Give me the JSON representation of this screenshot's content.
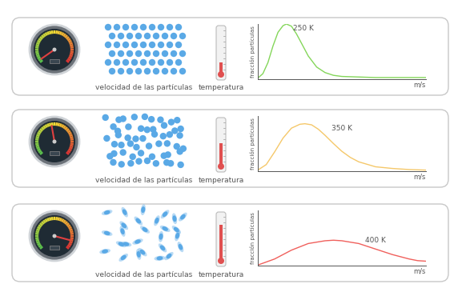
{
  "panels": [
    {
      "gauge_label": "velocidad de las partículas",
      "thermometer_label": "temperatura"
    },
    {
      "gauge_label": "velocidad de las partículas",
      "thermometer_label": "temperatura"
    },
    {
      "gauge_label": "velocidad de las partículas",
      "thermometer_label": "temperatura"
    }
  ],
  "chart_data": [
    {
      "type": "line",
      "x_label": "m/s",
      "y_label": "fracción partículas",
      "xlim": [
        0,
        100
      ],
      "ylim": [
        0,
        100
      ],
      "xticks": [],
      "yticks": [],
      "grid": false,
      "tick_labels": false,
      "series": [
        {
          "name": null,
          "color": "#84d65a",
          "x": [
            0,
            3,
            6,
            9,
            12,
            15,
            17,
            20,
            23,
            26,
            30,
            35,
            40,
            45,
            50,
            60,
            70,
            80,
            90,
            100
          ],
          "values": [
            2,
            10,
            30,
            60,
            85,
            97,
            100,
            96,
            82,
            65,
            42,
            22,
            12,
            7,
            5,
            4,
            3,
            3,
            3,
            3
          ]
        }
      ],
      "annotations": [
        {
          "text": "250 K",
          "x": 21,
          "y": 92
        }
      ]
    },
    {
      "type": "line",
      "x_label": "m/s",
      "y_label": "fracción partículas",
      "xlim": [
        0,
        100
      ],
      "ylim": [
        0,
        100
      ],
      "xticks": [],
      "yticks": [],
      "grid": false,
      "tick_labels": false,
      "series": [
        {
          "name": null,
          "color": "#f5c86a",
          "x": [
            0,
            5,
            10,
            15,
            20,
            25,
            28,
            32,
            36,
            40,
            45,
            50,
            55,
            60,
            70,
            80,
            90,
            100
          ],
          "values": [
            2,
            12,
            35,
            60,
            78,
            85,
            86,
            84,
            76,
            65,
            50,
            36,
            25,
            17,
            8,
            5,
            3,
            2
          ]
        }
      ],
      "annotations": [
        {
          "text": "350 K",
          "x": 44,
          "y": 78
        }
      ]
    },
    {
      "type": "line",
      "x_label": "m/s",
      "y_label": "fracción partículas",
      "xlim": [
        0,
        100
      ],
      "ylim": [
        0,
        100
      ],
      "xticks": [],
      "yticks": [],
      "grid": false,
      "tick_labels": false,
      "series": [
        {
          "name": null,
          "color": "#f0605c",
          "x": [
            0,
            10,
            20,
            30,
            40,
            45,
            50,
            60,
            70,
            80,
            90,
            95,
            100
          ],
          "values": [
            1,
            12,
            28,
            40,
            45,
            46,
            45,
            40,
            30,
            20,
            12,
            9,
            8
          ]
        }
      ],
      "annotations": [
        {
          "text": "400 K",
          "x": 64,
          "y": 46
        }
      ]
    }
  ]
}
